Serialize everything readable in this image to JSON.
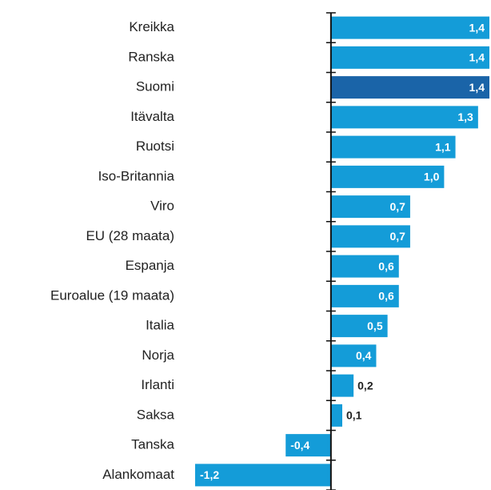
{
  "chart_data": {
    "type": "barh",
    "categories": [
      "Kreikka",
      "Ranska",
      "Suomi",
      "Itävalta",
      "Ruotsi",
      "Iso-Britannia",
      "Viro",
      "EU (28 maata)",
      "Espanja",
      "Euroalue (19 maata)",
      "Italia",
      "Norja",
      "Irlanti",
      "Saksa",
      "Tanska",
      "Alankomaat"
    ],
    "values": [
      1.4,
      1.4,
      1.4,
      1.3,
      1.1,
      1.0,
      0.7,
      0.7,
      0.6,
      0.6,
      0.5,
      0.4,
      0.2,
      0.1,
      -0.4,
      -1.2
    ],
    "value_labels": [
      "1,4",
      "1,4",
      "1,4",
      "1,3",
      "1,1",
      "1,0",
      "0,7",
      "0,7",
      "0,6",
      "0,6",
      "0,5",
      "0,4",
      "0,2",
      "0,1",
      "-0,4",
      "-1,2"
    ],
    "colors": [
      "#149cd8",
      "#149cd8",
      "#1a64a8",
      "#149cd8",
      "#149cd8",
      "#149cd8",
      "#149cd8",
      "#149cd8",
      "#149cd8",
      "#149cd8",
      "#149cd8",
      "#149cd8",
      "#149cd8",
      "#149cd8",
      "#149cd8",
      "#149cd8"
    ],
    "xlim": [
      -1.2,
      1.4
    ]
  }
}
